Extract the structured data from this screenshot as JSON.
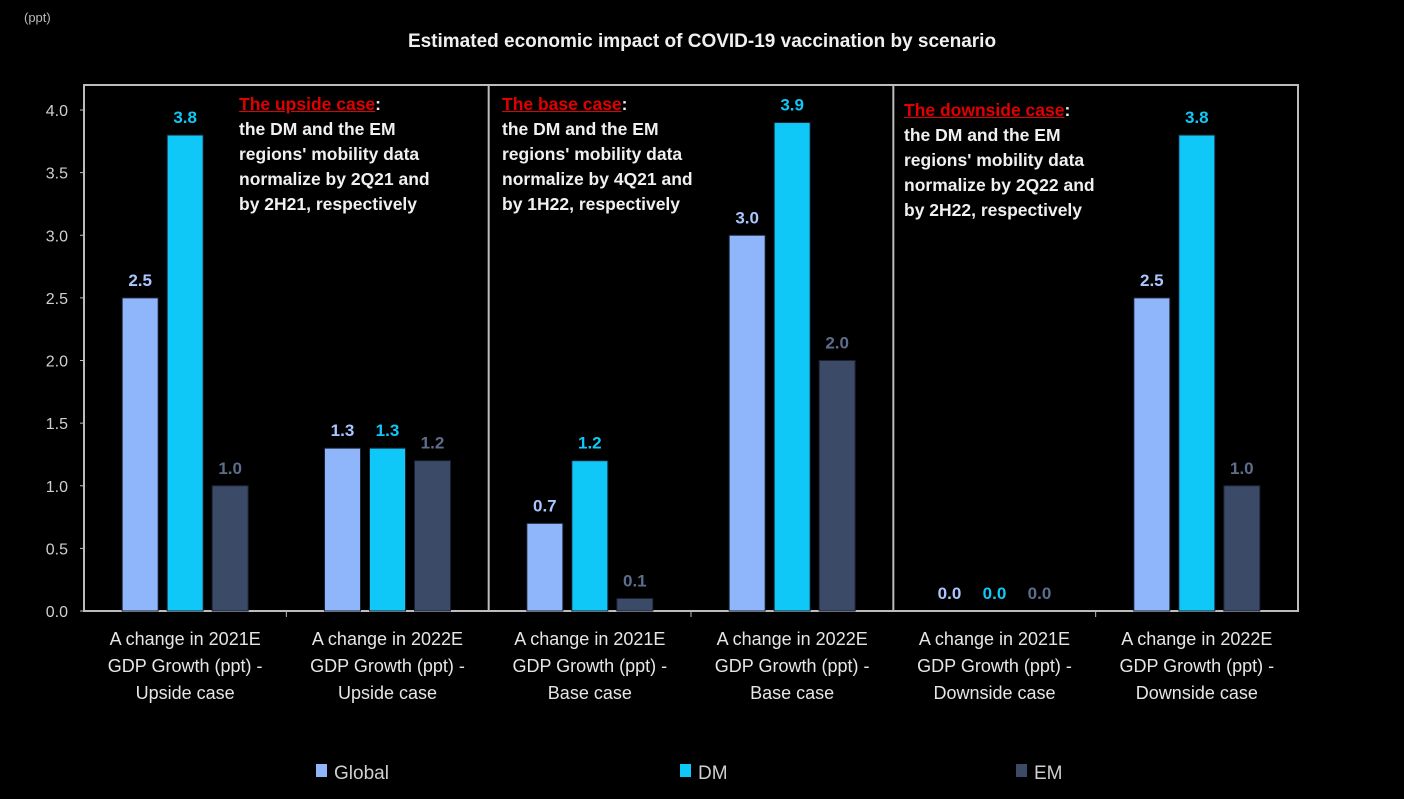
{
  "chart_data": {
    "type": "bar",
    "title": "Estimated economic impact of COVID-19 vaccination by scenario",
    "ylabel": "(ppt)",
    "ylim": [
      0,
      4.0
    ],
    "yticks": [
      "0.0",
      "0.5",
      "1.0",
      "1.5",
      "2.0",
      "2.5",
      "3.0",
      "3.5",
      "4.0"
    ],
    "grid": false,
    "legend_position": "bottom",
    "categories": [
      [
        "A change in 2021E",
        "GDP Growth (ppt) -",
        "Upside case"
      ],
      [
        "A change in 2022E",
        "GDP Growth (ppt) -",
        "Upside case"
      ],
      [
        "A change in 2021E",
        "GDP Growth (ppt) -",
        "Base case"
      ],
      [
        "A change in 2022E",
        "GDP Growth (ppt) -",
        "Base case"
      ],
      [
        "A change in 2021E",
        "GDP Growth (ppt) -",
        "Downside case"
      ],
      [
        "A change in 2022E",
        "GDP Growth (ppt) -",
        "Downside case"
      ]
    ],
    "series": [
      {
        "name": "Global",
        "color": "#8fb6fa",
        "label_color": "#a9c6ff",
        "values": [
          2.5,
          1.3,
          0.7,
          3.0,
          0.0,
          2.5
        ]
      },
      {
        "name": "DM",
        "color": "#10c8f8",
        "label_color": "#10c8f8",
        "values": [
          3.8,
          1.3,
          1.2,
          3.9,
          0.0,
          3.8
        ]
      },
      {
        "name": "EM",
        "color": "#3b4a66",
        "label_color": "#5d6e8c",
        "values": [
          1.0,
          1.2,
          0.1,
          2.0,
          0.0,
          1.0
        ]
      }
    ],
    "annotations": [
      {
        "highlight": "The upside case",
        "colon": ":",
        "lines": [
          "the DM and the EM",
          "regions' mobility data",
          "normalize by 2Q21 and",
          "by 2H21, respectively"
        ]
      },
      {
        "highlight": "The base case",
        "colon": ":",
        "lines": [
          "the DM and the EM",
          "regions' mobility data",
          "normalize by 4Q21 and",
          "by 1H22, respectively"
        ]
      },
      {
        "highlight": "The downside case",
        "colon": ":",
        "lines": [
          "the DM and the EM",
          "regions' mobility data",
          "normalize by 2Q22 and",
          "by 2H22, respectively"
        ]
      }
    ]
  }
}
